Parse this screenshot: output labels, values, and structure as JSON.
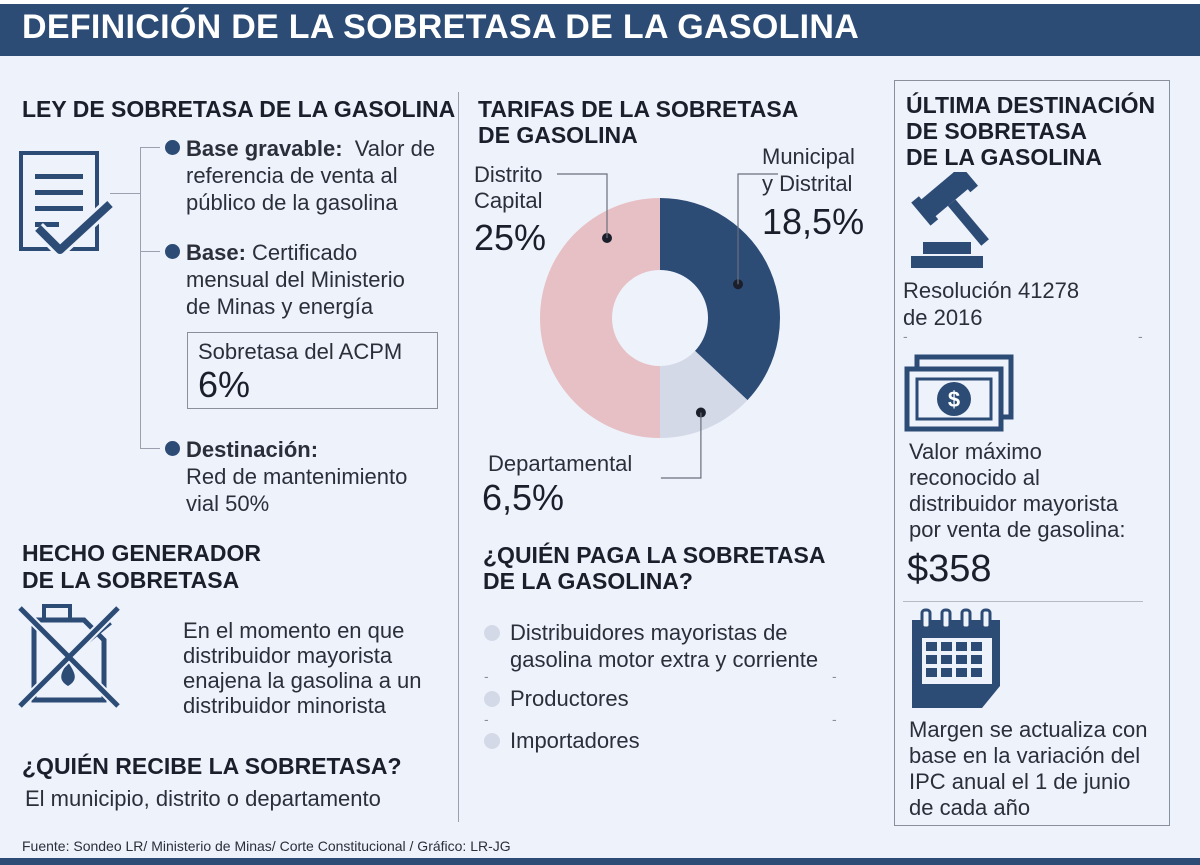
{
  "header": {
    "title": "DEFINICIÓN DE LA SOBRETASA DE LA GASOLINA"
  },
  "ley": {
    "title": "LEY DE SOBRETASA DE LA GASOLINA",
    "base_gravable_label": "Base gravable:",
    "base_gravable_text": [
      "Valor de",
      "referencia de venta al",
      "público de la gasolina"
    ],
    "base_label": "Base:",
    "base_text": [
      "Certificado",
      "mensual del Ministerio",
      "de Minas y energía"
    ],
    "acpm_label": "Sobretasa del ACPM",
    "acpm_value": "6%",
    "destinacion_label": "Destinación:",
    "destinacion_text": [
      "Red de mantenimiento",
      "vial 50%"
    ]
  },
  "hecho": {
    "title": [
      "HECHO GENERADOR",
      "DE LA SOBRETASA"
    ],
    "text": [
      "En el momento en que",
      "distribuidor mayorista",
      "enajena la gasolina a un",
      "distribuidor minorista"
    ]
  },
  "recibe": {
    "title": "¿QUIÉN RECIBE LA SOBRETASA?",
    "text": "El municipio, distrito o departamento"
  },
  "tarifas": {
    "title": [
      "TARIFAS DE LA SOBRETASA",
      "DE GASOLINA"
    ]
  },
  "chart_data": {
    "type": "pie",
    "title": "TARIFAS DE LA SOBRETASA DE GASOLINA",
    "categories": [
      "Municipal y Distrital",
      "Departamental",
      "Distrito Capital"
    ],
    "values": [
      18.5,
      6.5,
      25
    ],
    "value_labels": [
      "18,5%",
      "6,5%",
      "25%"
    ],
    "label_lines": [
      [
        "Municipal",
        "y Distrital"
      ],
      [
        "Departamental"
      ],
      [
        "Distrito",
        "Capital"
      ]
    ],
    "colors": [
      "#2c4c76",
      "#d4d9e8",
      "#e6c0c4"
    ],
    "donut": true
  },
  "paga": {
    "title": [
      "¿QUIÉN PAGA LA SOBRETASA",
      "DE LA GASOLINA?"
    ],
    "items": [
      [
        "Distribuidores mayoristas  de",
        "gasolina motor extra y corriente"
      ],
      [
        "Productores"
      ],
      [
        "Importadores"
      ]
    ]
  },
  "ultima": {
    "title": [
      "ÚLTIMA DESTINACIÓN",
      "DE SOBRETASA",
      "DE LA GASOLINA"
    ],
    "resolucion": [
      "Resolución 41278",
      "de 2016"
    ],
    "valor_text": [
      "Valor máximo",
      "reconocido al",
      "distribuidor mayorista",
      "por venta de gasolina:"
    ],
    "valor_amount": "$358",
    "margen_text": [
      "Margen se actualiza con",
      "base en la variación del",
      "IPC anual el 1 de junio",
      "de cada año"
    ]
  },
  "icons": {
    "document": "document-check-icon",
    "canister": "fuel-can-crossed-icon",
    "gavel": "gavel-icon",
    "money": "banknote-icon",
    "calendar": "calendar-icon"
  },
  "source": "Fuente: Sondeo LR/ Ministerio de Minas/ Corte Constitucional  / Gráfico: LR-JG"
}
